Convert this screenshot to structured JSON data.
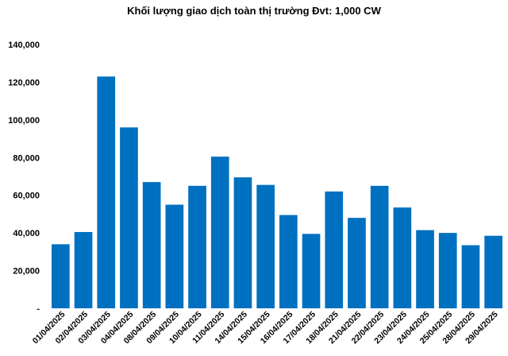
{
  "chart_data": {
    "type": "bar",
    "title": "Khối lượng giao dịch toàn thị trường Đvt: 1,000 CW",
    "xlabel": "",
    "ylabel": "",
    "ylim": [
      0,
      140000
    ],
    "y_ticks": [
      0,
      20000,
      40000,
      60000,
      80000,
      100000,
      120000,
      140000
    ],
    "y_tick_labels": [
      "-",
      "20,000",
      "40,000",
      "60,000",
      "80,000",
      "100,000",
      "120,000",
      "140,000"
    ],
    "grid": false,
    "legend": "none",
    "bar_color": "#0070C0",
    "categories": [
      "01/04/2025",
      "02/04/2025",
      "03/04/2025",
      "04/04/2025",
      "08/04/2025",
      "09/04/2025",
      "10/04/2025",
      "11/04/2025",
      "14/04/2025",
      "15/04/2025",
      "16/04/2025",
      "17/04/2025",
      "18/04/2025",
      "21/04/2025",
      "22/04/2025",
      "23/04/2025",
      "24/04/2025",
      "25/04/2025",
      "28/04/2025",
      "29/04/2025"
    ],
    "values": [
      34000,
      40500,
      123000,
      96000,
      67000,
      55000,
      65000,
      80500,
      69500,
      65500,
      49500,
      39500,
      62000,
      48000,
      65000,
      53500,
      41500,
      40000,
      33500,
      38500
    ]
  }
}
